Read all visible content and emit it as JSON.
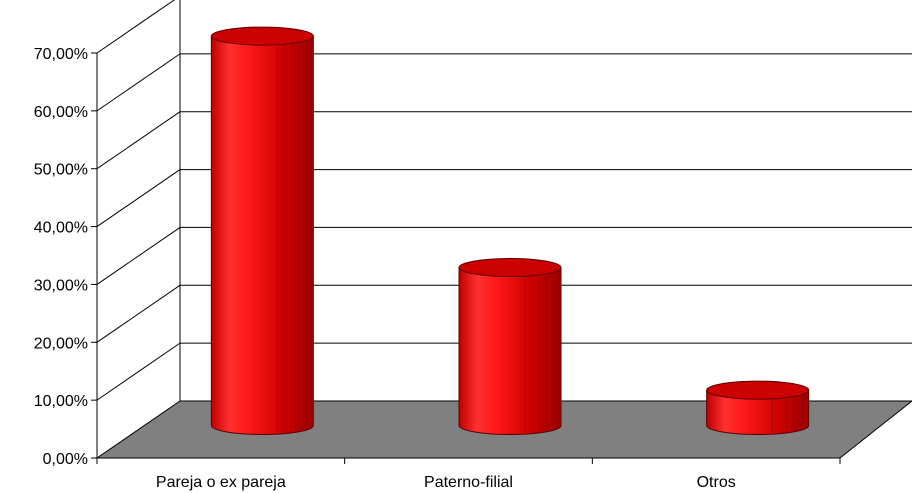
{
  "chart_data": {
    "type": "bar",
    "style": "3d-cylinder",
    "categories": [
      "Pareja o ex pareja",
      "Paterno-filial",
      "Otros"
    ],
    "values": [
      0.68,
      0.28,
      0.068
    ],
    "y_tick_labels": [
      "0,00%",
      "10,00%",
      "20,00%",
      "30,00%",
      "40,00%",
      "50,00%",
      "60,00%",
      "70,00%"
    ],
    "ylim": [
      0,
      0.7
    ],
    "grid": true,
    "legend": "none",
    "title": "",
    "xlabel": "",
    "ylabel": "",
    "colors": {
      "bar": "#e00000",
      "bar_dark": "#a00000",
      "bar_highlight": "#ff5a5a",
      "bar_top": "#cc0000",
      "floor": "#808080",
      "grid": "#000000"
    }
  }
}
